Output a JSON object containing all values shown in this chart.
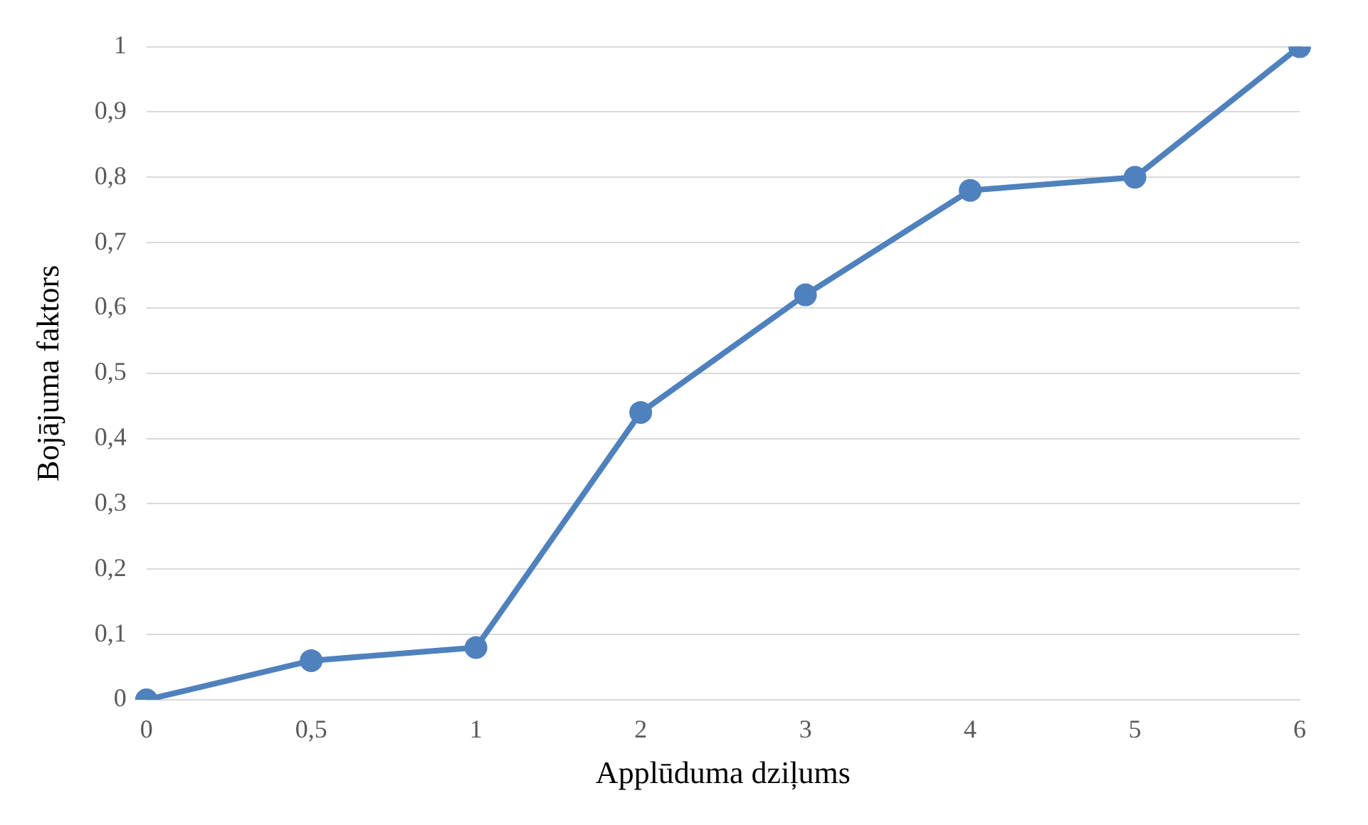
{
  "chart_data": {
    "type": "line",
    "xlabel": "Applūduma dziļums",
    "ylabel": "Bojājuma faktors",
    "categories": [
      "0",
      "0,5",
      "1",
      "2",
      "3",
      "4",
      "5",
      "6"
    ],
    "series": [
      {
        "color": "#4f81bd",
        "values": [
          0,
          0.06,
          0.08,
          0.44,
          0.62,
          0.78,
          0.8,
          1.0
        ]
      }
    ],
    "ylim": [
      0,
      1
    ],
    "yticks": [
      0,
      {
        "value": 0.1,
        "label": "0,1"
      },
      {
        "value": 0.2,
        "label": "0,2"
      },
      {
        "value": 0.3,
        "label": "0,3"
      },
      {
        "value": 0.4,
        "label": "0,4"
      },
      {
        "value": 0.5,
        "label": "0,5"
      },
      {
        "value": 0.6,
        "label": "0,6"
      },
      {
        "value": 0.7,
        "label": "0,7"
      },
      {
        "value": 0.8,
        "label": "0,8"
      },
      {
        "value": 0.9,
        "label": "0,9"
      },
      1
    ],
    "grid": "y",
    "marker": "circle",
    "line_style": "solid"
  }
}
